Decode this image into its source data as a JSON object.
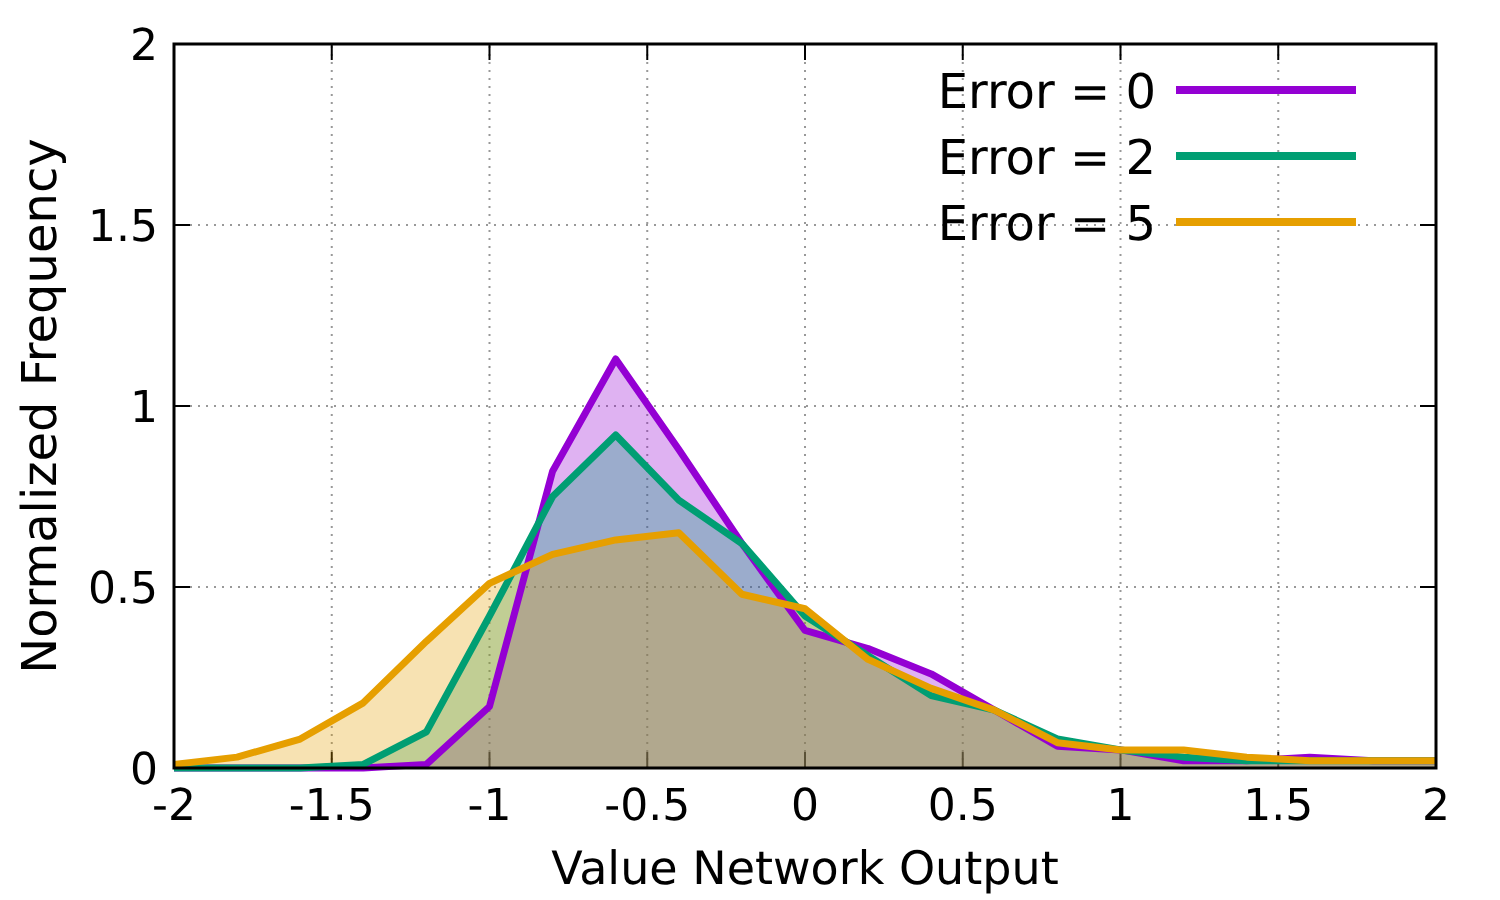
{
  "chart_data": {
    "type": "area",
    "xlabel": "Value Network Output",
    "ylabel": "Normalized Frequency",
    "x": [
      -2,
      -1.8,
      -1.6,
      -1.4,
      -1.2,
      -1,
      -0.8,
      -0.6,
      -0.4,
      -0.2,
      0,
      0.2,
      0.4,
      0.6,
      0.8,
      1,
      1.2,
      1.4,
      1.6,
      1.8,
      2
    ],
    "series": [
      {
        "name": "Error = 0",
        "color": "#9400d3",
        "values": [
          0,
          0,
          0,
          0,
          0.01,
          0.17,
          0.82,
          1.13,
          0.88,
          0.62,
          0.38,
          0.33,
          0.26,
          0.16,
          0.06,
          0.05,
          0.02,
          0.02,
          0.03,
          0.02,
          0.02
        ]
      },
      {
        "name": "Error = 2",
        "color": "#009e73",
        "values": [
          0,
          0,
          0,
          0.01,
          0.1,
          0.42,
          0.75,
          0.92,
          0.74,
          0.62,
          0.42,
          0.31,
          0.2,
          0.16,
          0.08,
          0.05,
          0.03,
          0.02,
          0.02,
          0.02,
          0.02
        ]
      },
      {
        "name": "Error = 5",
        "color": "#e69f00",
        "values": [
          0.01,
          0.03,
          0.08,
          0.18,
          0.35,
          0.51,
          0.59,
          0.63,
          0.65,
          0.48,
          0.44,
          0.3,
          0.22,
          0.16,
          0.07,
          0.05,
          0.05,
          0.03,
          0.02,
          0.02,
          0.02
        ]
      }
    ],
    "xlim": [
      -2,
      2
    ],
    "xticks": [
      -2,
      -1.5,
      -1,
      -0.5,
      0,
      0.5,
      1,
      1.5,
      2
    ],
    "ylim": [
      0,
      2
    ],
    "yticks": [
      0,
      0.5,
      1,
      1.5,
      2
    ],
    "grid": true,
    "legend": "top right",
    "line_style": "solid"
  }
}
